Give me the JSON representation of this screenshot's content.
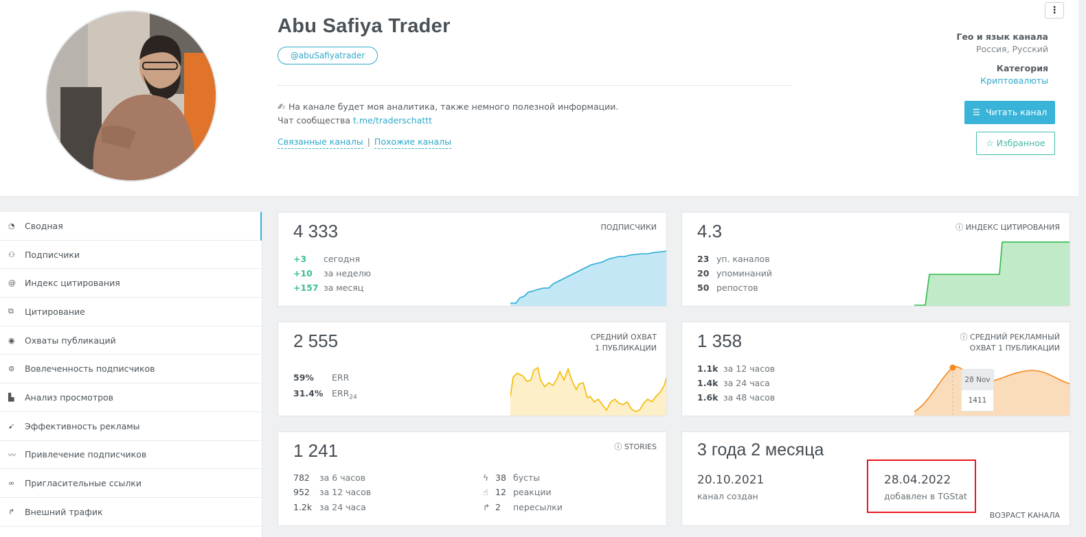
{
  "header": {
    "title": "Abu Safiya Trader",
    "handle": "@abuSafiyatrader",
    "description_line1": "На канале будет моя аналитика, также немного полезной информации.",
    "description_line2_prefix": "Чат сообщества",
    "description_link": "t.me/traderschattt",
    "related_channels": "Связанные каналы",
    "separator": "|",
    "similar_channels": "Похожие каналы",
    "geo_label": "Гео и язык канала",
    "geo_value": "Россия, Русский",
    "category_label": "Категория",
    "category_value": "Криптовалюты",
    "read_button": "Читать канал",
    "fav_button": "Избранное",
    "more_icon": "vertical-dots-icon"
  },
  "sidebar": {
    "items": [
      {
        "label": "Сводная",
        "icon": "dashboard-icon"
      },
      {
        "label": "Подписчики",
        "icon": "users-icon"
      },
      {
        "label": "Индекс цитирования",
        "icon": "at-icon"
      },
      {
        "label": "Цитирование",
        "icon": "copy-icon"
      },
      {
        "label": "Охваты публикаций",
        "icon": "eye-icon"
      },
      {
        "label": "Вовлеченность подписчиков",
        "icon": "engagement-icon"
      },
      {
        "label": "Анализ просмотров",
        "icon": "bar-chart-icon"
      },
      {
        "label": "Эффективность рекламы",
        "icon": "rocket-icon"
      },
      {
        "label": "Привлечение подписчиков",
        "icon": "trend-icon"
      },
      {
        "label": "Пригласительные ссылки",
        "icon": "link-icon"
      },
      {
        "label": "Внешний трафик",
        "icon": "redirect-icon"
      }
    ]
  },
  "cards": {
    "subscribers": {
      "value": "4 333",
      "label": "ПОДПИСЧИКИ",
      "rows": [
        {
          "num": "+3",
          "text": "сегодня"
        },
        {
          "num": "+10",
          "text": "за неделю"
        },
        {
          "num": "+157",
          "text": "за месяц"
        }
      ]
    },
    "citation": {
      "value": "4.3",
      "label": "ИНДЕКС ЦИТИРОВАНИЯ",
      "rows": [
        {
          "num": "23",
          "text": "уп. каналов"
        },
        {
          "num": "20",
          "text": "упоминаний"
        },
        {
          "num": "50",
          "text": "репостов"
        }
      ]
    },
    "reach": {
      "value": "2 555",
      "label1": "СРЕДНИЙ ОХВАТ",
      "label2": "1 ПУБЛИКАЦИИ",
      "rows": [
        {
          "num": "59%",
          "text": "ERR"
        },
        {
          "num": "31.4%",
          "text": "ERR",
          "sub": "24"
        }
      ]
    },
    "ad_reach": {
      "value": "1 358",
      "label1": "СРЕДНИЙ РЕКЛАМНЫЙ",
      "label2": "ОХВАТ 1 ПУБЛИКАЦИИ",
      "rows": [
        {
          "num": "1.1k",
          "text": "за 12 часов"
        },
        {
          "num": "1.4k",
          "text": "за 24 часа"
        },
        {
          "num": "1.6k",
          "text": "за 48 часов"
        }
      ],
      "tooltip_date": "28 Nov",
      "tooltip_value": "1411"
    },
    "stories": {
      "value": "1 241",
      "label": "STORIES",
      "rows": [
        {
          "num": "782",
          "text": "за 6 часов"
        },
        {
          "num": "952",
          "text": "за 12 часов"
        },
        {
          "num": "1.2k",
          "text": "за 24 часа"
        }
      ],
      "rows2": [
        {
          "num": "38",
          "text": "бусты",
          "icon": "bolt-icon"
        },
        {
          "num": "12",
          "text": "реакции",
          "icon": "thumb-up-icon"
        },
        {
          "num": "2",
          "text": "пересылки",
          "icon": "share-icon"
        }
      ]
    },
    "age": {
      "value": "3 года 2 месяца",
      "created_date": "20.10.2021",
      "created_label": "канал создан",
      "added_date": "28.04.2022",
      "added_label": "добавлен в TGStat",
      "label": "ВОЗРАСТ КАНАЛА"
    }
  },
  "colors": {
    "accent": "#39b3d7",
    "positive": "#3dbf9a",
    "subscribers_chart": "#29a9d6",
    "citation_chart": "#2fb84a",
    "reach_chart": "#f5b800",
    "ad_chart": "#f28a1c",
    "highlight_box": "#e8141c"
  }
}
